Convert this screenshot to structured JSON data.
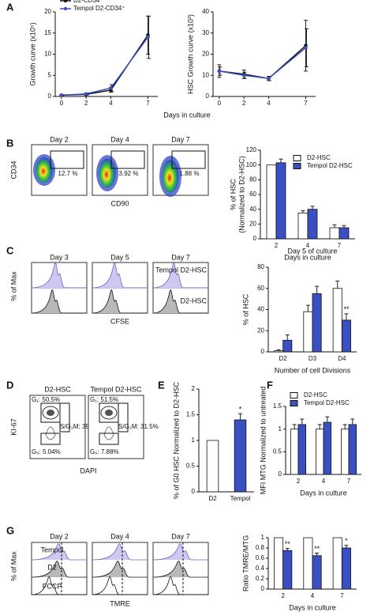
{
  "panel_labels": [
    "A",
    "B",
    "C",
    "D",
    "E",
    "F",
    "G"
  ],
  "chart_data": [
    {
      "type": "line",
      "y_label": "Growth curve (x10⁵)",
      "x_label": "Days in culture",
      "x": [
        0,
        2,
        4,
        7
      ],
      "xlim": [
        -0.5,
        7.8
      ],
      "xticks": [
        0,
        2,
        4,
        7
      ],
      "ylim": [
        0,
        20
      ],
      "yticks": [
        0,
        5,
        10,
        15,
        20
      ],
      "legend": "upper left",
      "series": [
        {
          "name": "D2-CD34⁺",
          "color": "#111111",
          "values": [
            0.3,
            0.5,
            1.5,
            14.5
          ],
          "errors": [
            0.1,
            0.2,
            0.5,
            4.5
          ]
        },
        {
          "name": "Tempol D2-CD34⁺",
          "color": "#3a4fc1",
          "values": [
            0.3,
            0.6,
            2,
            14
          ],
          "errors": [
            0.1,
            0.2,
            0.8,
            5
          ]
        }
      ]
    },
    {
      "type": "line",
      "y_label": "HSC Growth curve (x10³)",
      "x": [
        0,
        2,
        4,
        7
      ],
      "xlim": [
        -0.5,
        7.8
      ],
      "xticks": [
        0,
        2,
        4,
        7
      ],
      "ylim": [
        0,
        40
      ],
      "yticks": [
        0,
        10,
        20,
        30,
        40
      ],
      "series": [
        {
          "color": "#111111",
          "values": [
            12,
            10.5,
            8.5,
            24
          ],
          "errors": [
            3,
            2,
            1,
            12
          ]
        },
        {
          "color": "#3a4fc1",
          "values": [
            12,
            10,
            8.5,
            23
          ],
          "errors": [
            2,
            1.5,
            1,
            9
          ]
        }
      ]
    },
    {
      "type": "bar",
      "y_label": [
        "% of HSC",
        "(Normalized to D2-HSC)"
      ],
      "x_label": "Days in culture",
      "categories": [
        "2",
        "4",
        "7"
      ],
      "ylim": [
        0,
        120
      ],
      "yticks": [
        0,
        20,
        40,
        60,
        80,
        100,
        120
      ],
      "legend": "upper right",
      "series": [
        {
          "name": "D2-HSC",
          "color": "#ffffff",
          "values": [
            100,
            35,
            15
          ],
          "errors": [
            0,
            3,
            4
          ]
        },
        {
          "name": "Tempol D2-HSC",
          "color": "#3a4fc1",
          "values": [
            103,
            40,
            15
          ],
          "errors": [
            5,
            4,
            3
          ]
        }
      ]
    },
    {
      "type": "bar",
      "title": "Day 5 of culture",
      "y_label": "% of HSC",
      "x_label": "Number of cell Divisions",
      "categories": [
        "D2",
        "D3",
        "D4"
      ],
      "ylim": [
        0,
        80
      ],
      "yticks": [
        0,
        20,
        40,
        60,
        80
      ],
      "series": [
        {
          "color": "#ffffff",
          "values": [
            1,
            38,
            60
          ],
          "errors": [
            1,
            6,
            7
          ],
          "annotations": [
            null,
            null,
            null
          ]
        },
        {
          "color": "#3a4fc1",
          "values": [
            11,
            55,
            30
          ],
          "errors": [
            5,
            7,
            6
          ],
          "annotations": [
            null,
            null,
            "**"
          ]
        }
      ]
    },
    {
      "type": "bar",
      "y_label": "% of G0 HSC Normalized to D2-HSC",
      "categories": [
        "D2",
        "Tempol"
      ],
      "ylim": [
        0,
        2
      ],
      "yticks": [
        0,
        0.5,
        1,
        1.5,
        2
      ],
      "values": [
        1,
        1.4
      ],
      "errors": [
        0,
        0.12
      ],
      "colors": [
        "#ffffff",
        "#3a4fc1"
      ],
      "annotations": [
        null,
        "*"
      ]
    },
    {
      "type": "bar",
      "y_label": "MFI MTG Normalized to untreated",
      "x_label": "Days in culture",
      "categories": [
        "2",
        "4",
        "7"
      ],
      "ylim": [
        0,
        1.5
      ],
      "yticks": [
        0,
        0.5,
        1,
        1.5
      ],
      "legend": "upper left",
      "series": [
        {
          "name": "D2-HSC",
          "color": "#ffffff",
          "values": [
            1,
            1,
            1
          ],
          "errors": [
            0.1,
            0.1,
            0.1
          ]
        },
        {
          "name": "Tempol D2-HSC",
          "color": "#3a4fc1",
          "values": [
            1.1,
            1.15,
            1.1
          ],
          "errors": [
            0.12,
            0.12,
            0.12
          ]
        }
      ]
    },
    {
      "type": "bar",
      "y_label": "Ratio TMRE/MTG",
      "x_label": "Days in culture",
      "categories": [
        "2",
        "4",
        "7"
      ],
      "ylim": [
        0,
        1
      ],
      "yticks": [
        0,
        0.2,
        0.4,
        0.6,
        0.8,
        1
      ],
      "series": [
        {
          "color": "#ffffff",
          "values": [
            1,
            1,
            1
          ],
          "errors": [
            0,
            0,
            0
          ],
          "annotations": [
            null,
            null,
            null
          ]
        },
        {
          "color": "#3a4fc1",
          "values": [
            0.75,
            0.65,
            0.8
          ],
          "errors": [
            0.04,
            0.05,
            0.05
          ],
          "annotations": [
            "**",
            "**",
            "*"
          ]
        }
      ]
    }
  ],
  "flow": {
    "B": {
      "days": [
        "Day 2",
        "Day 4",
        "Day 7"
      ],
      "gates": [
        "12.7 %",
        "3.92 %",
        "1.88 %"
      ],
      "y_label": "CD34",
      "x_label": "CD90"
    },
    "C": {
      "days": [
        "Day 3",
        "Day 5",
        "Day 7"
      ],
      "top_label": "Tempol D2-HSC",
      "bottom_label": "D2-HSC",
      "y_label": "% of Max",
      "x_label": "CFSE"
    },
    "D": {
      "groups": [
        {
          "name": "D2-HSC",
          "g1": "G₁: 50.5%",
          "sg2m": "S/G₂M: 39%",
          "g0": "G₀: 5.04%"
        },
        {
          "name": "Tempol D2-HSC",
          "g1": "G₁: 51.5%",
          "sg2m": "S/G₂M: 31.5%",
          "g0": "G₀: 7.88%"
        }
      ],
      "y_label": "KI-67",
      "x_label": "DAPI"
    },
    "G": {
      "days": [
        "Day 2",
        "Day 4",
        "Day 7"
      ],
      "labels": [
        "Tempol",
        "D2",
        "FCCP"
      ],
      "y_label": "% of Max",
      "x_label": "TMRE"
    }
  }
}
